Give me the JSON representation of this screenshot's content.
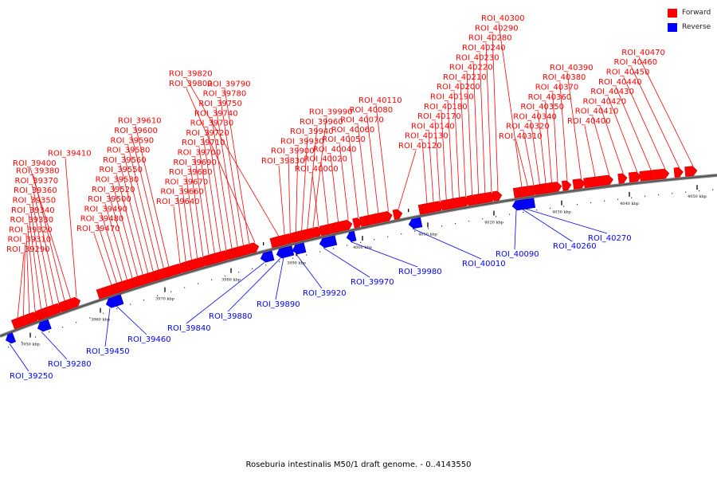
{
  "diagram": {
    "type": "linear genome map (arc) with annotated regions of interest",
    "caption": "Roseburia intestinalis M50/1 draft genome. - 0..4143550",
    "legend": [
      {
        "label": "Forward",
        "color": "#ff0000"
      },
      {
        "label": "Reverse",
        "color": "#0000ff"
      }
    ],
    "colors": {
      "forward": "#ff0000",
      "reverse": "#0000ff",
      "backbone": "#808080",
      "tick": "#000000"
    },
    "kbp_ticks": [
      "3950 kbp",
      "3960 kbp",
      "3970 kbp",
      "3980 kbp",
      "3990 kbp",
      "4000 kbp",
      "4010 kbp",
      "4020 kbp",
      "4030 kbp",
      "4040 kbp",
      "4050 kbp"
    ],
    "forward_rois": [
      "ROI_39290",
      "ROI_39310",
      "ROI_39320",
      "ROI_39330",
      "ROI_39340",
      "ROI_39350",
      "ROI_39360",
      "ROI_39370",
      "ROI_39380",
      "ROI_39400",
      "ROI_39410",
      "ROI_39470",
      "ROI_39480",
      "ROI_39490",
      "ROI_39500",
      "ROI_39520",
      "ROI_39530",
      "ROI_39550",
      "ROI_39560",
      "ROI_39580",
      "ROI_39590",
      "ROI_39600",
      "ROI_39610",
      "ROI_39640",
      "ROI_39660",
      "ROI_39670",
      "ROI_39680",
      "ROI_39690",
      "ROI_39700",
      "ROI_39710",
      "ROI_39720",
      "ROI_39730",
      "ROI_39740",
      "ROI_39750",
      "ROI_39780",
      "ROI_39790",
      "ROI_39800",
      "ROI_39820",
      "ROI_39830",
      "ROI_39900",
      "ROI_39930",
      "ROI_39940",
      "ROI_39960",
      "ROI_39990",
      "ROI_40000",
      "ROI_40020",
      "ROI_40040",
      "ROI_40050",
      "ROI_40060",
      "ROI_40070",
      "ROI_40080",
      "ROI_40110",
      "ROI_40120",
      "ROI_40130",
      "ROI_40140",
      "ROI_40170",
      "ROI_40180",
      "ROI_40190",
      "ROI_40200",
      "ROI_40210",
      "ROI_40220",
      "ROI_40230",
      "ROI_40240",
      "ROI_40280",
      "ROI_40290",
      "ROI_40300",
      "ROI_40310",
      "ROI_40320",
      "ROI_40340",
      "ROI_40350",
      "ROI_40360",
      "ROI_40370",
      "ROI_40380",
      "ROI_40390",
      "ROI_40400",
      "ROI_40410",
      "ROI_40420",
      "ROI_40430",
      "ROI_40440",
      "ROI_40450",
      "ROI_40460",
      "ROI_40470"
    ],
    "reverse_rois": [
      "ROI_39250",
      "ROI_39280",
      "ROI_39450",
      "ROI_39460",
      "ROI_39840",
      "ROI_39880",
      "ROI_39890",
      "ROI_39920",
      "ROI_39970",
      "ROI_39980",
      "ROI_40010",
      "ROI_40090",
      "ROI_40260",
      "ROI_40270"
    ]
  }
}
